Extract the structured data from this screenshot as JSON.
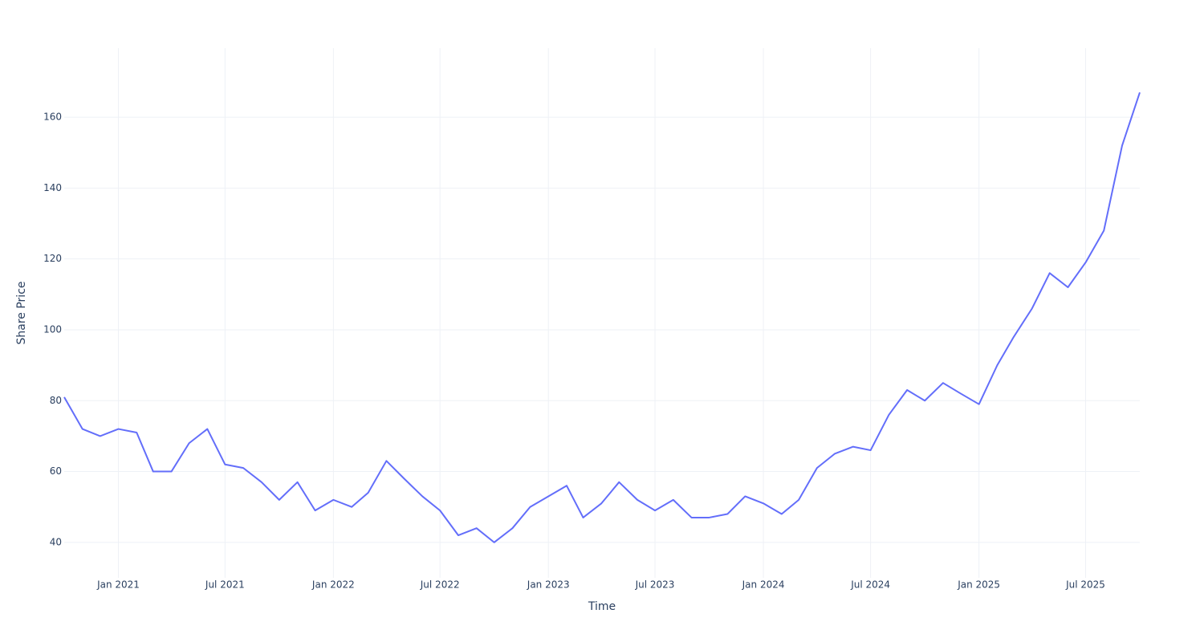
{
  "chart_data": {
    "type": "line",
    "x_label": "Time",
    "y_label": "Share Price",
    "x": [
      "2020-10",
      "2020-11",
      "2020-12",
      "2021-01",
      "2021-02",
      "2021-03",
      "2021-04",
      "2021-05",
      "2021-06",
      "2021-07",
      "2021-08",
      "2021-09",
      "2021-10",
      "2021-11",
      "2021-12",
      "2022-01",
      "2022-02",
      "2022-03",
      "2022-04",
      "2022-05",
      "2022-06",
      "2022-07",
      "2022-08",
      "2022-09",
      "2022-10",
      "2022-11",
      "2022-12",
      "2023-01",
      "2023-02",
      "2023-03",
      "2023-04",
      "2023-05",
      "2023-06",
      "2023-07",
      "2023-08",
      "2023-09",
      "2023-10",
      "2023-11",
      "2023-12",
      "2024-01",
      "2024-02",
      "2024-03",
      "2024-04",
      "2024-05",
      "2024-06",
      "2024-07",
      "2024-08",
      "2024-09",
      "2024-10",
      "2024-11",
      "2024-12",
      "2025-01",
      "2025-02",
      "2025-03",
      "2025-04",
      "2025-05",
      "2025-06",
      "2025-07",
      "2025-08",
      "2025-09",
      "2025-10"
    ],
    "series": [
      {
        "name": "Share Price",
        "color": "#636efa",
        "values": [
          81,
          72,
          70,
          72,
          71,
          60,
          60,
          68,
          72,
          62,
          61,
          57,
          52,
          57,
          49,
          52,
          50,
          54,
          63,
          58,
          53,
          49,
          42,
          44,
          40,
          44,
          50,
          53,
          56,
          47,
          51,
          57,
          52,
          49,
          52,
          47,
          47,
          48,
          53,
          51,
          48,
          52,
          61,
          65,
          67,
          66,
          76,
          83,
          80,
          85,
          82,
          79,
          90,
          98,
          106,
          116,
          112,
          119,
          128,
          152,
          167
        ]
      }
    ],
    "xlim": [
      "2020-10",
      "2025-10"
    ],
    "xticks": [
      {
        "value": "2021-01",
        "label": "Jan 2021"
      },
      {
        "value": "2021-07",
        "label": "Jul 2021"
      },
      {
        "value": "2022-01",
        "label": "Jan 2022"
      },
      {
        "value": "2022-07",
        "label": "Jul 2022"
      },
      {
        "value": "2023-01",
        "label": "Jan 2023"
      },
      {
        "value": "2023-07",
        "label": "Jul 2023"
      },
      {
        "value": "2024-01",
        "label": "Jan 2024"
      },
      {
        "value": "2024-07",
        "label": "Jul 2024"
      },
      {
        "value": "2025-01",
        "label": "Jan 2025"
      },
      {
        "value": "2025-07",
        "label": "Jul 2025"
      }
    ],
    "ylim": [
      30,
      179.5
    ],
    "yticks": [
      40,
      60,
      80,
      100,
      120,
      140,
      160
    ],
    "grid": true
  }
}
